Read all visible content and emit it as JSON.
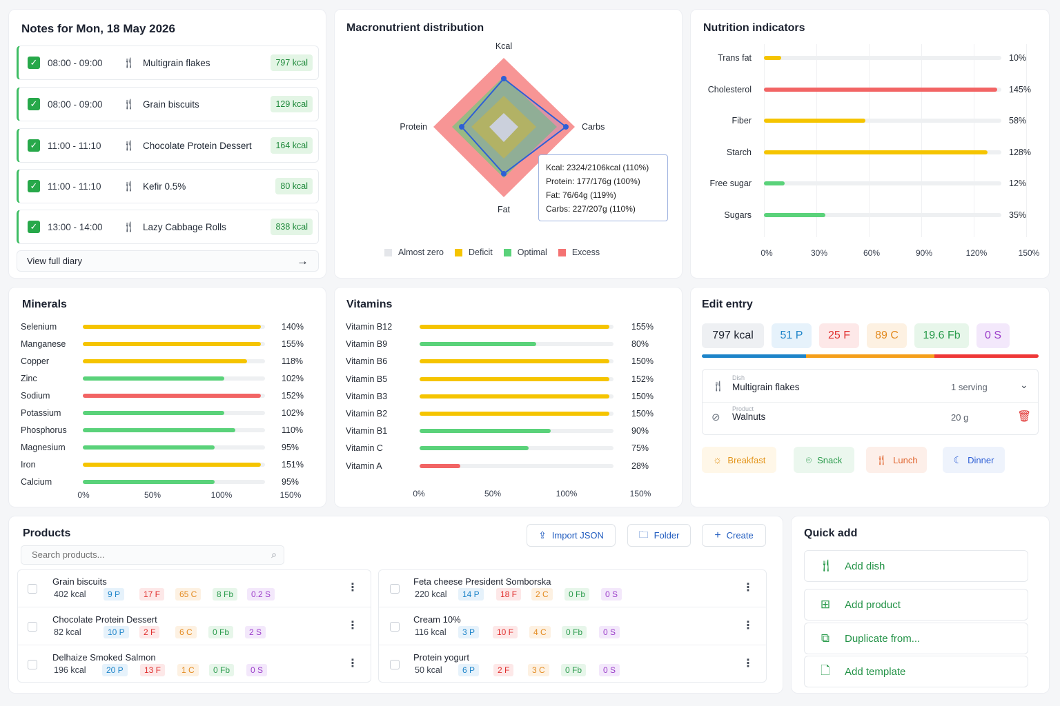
{
  "notes": {
    "title": "Notes for Mon, 18 May 2026",
    "entries": [
      {
        "time": "08:00 - 09:00",
        "name": "Multigrain flakes",
        "kcal": "797 kcal"
      },
      {
        "time": "08:00 - 09:00",
        "name": "Grain biscuits",
        "kcal": "129 kcal"
      },
      {
        "time": "11:00 - 11:10",
        "name": "Chocolate Protein Dessert",
        "kcal": "164 kcal"
      },
      {
        "time": "11:00 - 11:10",
        "name": "Kefir 0.5%",
        "kcal": "80 kcal"
      },
      {
        "time": "13:00 - 14:00",
        "name": "Lazy Cabbage Rolls",
        "kcal": "838 kcal"
      }
    ],
    "view_full": "View full diary"
  },
  "macro": {
    "title": "Macronutrient distribution",
    "axes": {
      "kcal": "Kcal",
      "carbs": "Carbs",
      "fat": "Fat",
      "protein": "Protein"
    },
    "tooltip": [
      "Kcal: 2324/2106kcal (110%)",
      "Protein: 177/176g (100%)",
      "Fat: 76/64g (119%)",
      "Carbs: 227/207g (110%)"
    ],
    "legend": [
      "Almost zero",
      "Deficit",
      "Optimal",
      "Excess"
    ]
  },
  "indicators": {
    "title": "Nutrition indicators",
    "ticks": [
      "0%",
      "30%",
      "60%",
      "90%",
      "120%",
      "150%"
    ]
  },
  "minerals": {
    "title": "Minerals",
    "ticks": [
      "0%",
      "50%",
      "100%",
      "150%"
    ]
  },
  "vitamins": {
    "title": "Vitamins",
    "ticks": [
      "0%",
      "50%",
      "100%",
      "150%"
    ]
  },
  "chart_data": [
    {
      "type": "radar",
      "title": "Macronutrient distribution",
      "axes": [
        "Kcal",
        "Carbs",
        "Fat",
        "Protein"
      ],
      "values_pct": [
        110,
        110,
        119,
        100
      ],
      "bands": [
        {
          "name": "Almost zero",
          "color": "#e4e6ea"
        },
        {
          "name": "Deficit",
          "color": "#f5c400"
        },
        {
          "name": "Optimal",
          "color": "#5ad27a"
        },
        {
          "name": "Excess",
          "color": "#f47272"
        }
      ]
    },
    {
      "type": "bar",
      "title": "Nutrition indicators",
      "categories": [
        "Trans fat",
        "Cholesterol",
        "Fiber",
        "Starch",
        "Free sugar",
        "Sugars"
      ],
      "values": [
        10,
        145,
        58,
        128,
        12,
        35
      ],
      "labels": [
        "10%",
        "145%",
        "58%",
        "128%",
        "12%",
        "35%"
      ],
      "colors": [
        "#f5c400",
        "#f26464",
        "#f5c400",
        "#f5c400",
        "#5ad27a",
        "#5ad27a"
      ],
      "xlim": [
        0,
        150
      ]
    },
    {
      "type": "bar",
      "title": "Minerals",
      "categories": [
        "Selenium",
        "Manganese",
        "Copper",
        "Zinc",
        "Sodium",
        "Potassium",
        "Phosphorus",
        "Magnesium",
        "Iron",
        "Calcium"
      ],
      "values": [
        140,
        155,
        118,
        102,
        152,
        102,
        110,
        95,
        151,
        95
      ],
      "labels": [
        "140%",
        "155%",
        "118%",
        "102%",
        "152%",
        "102%",
        "110%",
        "95%",
        "151%",
        "95%"
      ],
      "colors": [
        "#f5c400",
        "#f5c400",
        "#f5c400",
        "#5ad27a",
        "#f26464",
        "#5ad27a",
        "#5ad27a",
        "#5ad27a",
        "#f5c400",
        "#5ad27a"
      ],
      "xlim": [
        0,
        150
      ]
    },
    {
      "type": "bar",
      "title": "Vitamins",
      "categories": [
        "Vitamin B12",
        "Vitamin B9",
        "Vitamin B6",
        "Vitamin B5",
        "Vitamin B3",
        "Vitamin B2",
        "Vitamin B1",
        "Vitamin C",
        "Vitamin A"
      ],
      "values": [
        155,
        80,
        150,
        152,
        150,
        150,
        90,
        75,
        28
      ],
      "labels": [
        "155%",
        "80%",
        "150%",
        "152%",
        "150%",
        "150%",
        "90%",
        "75%",
        "28%"
      ],
      "colors": [
        "#f5c400",
        "#5ad27a",
        "#f5c400",
        "#f5c400",
        "#f5c400",
        "#f5c400",
        "#5ad27a",
        "#5ad27a",
        "#f26464"
      ],
      "xlim": [
        0,
        150
      ]
    }
  ],
  "edit": {
    "title": "Edit entry",
    "chips": [
      "797 kcal",
      "51 P",
      "25 F",
      "89 C",
      "19.6 Fb",
      "0 S"
    ],
    "macro_split": [
      0.31,
      0.38,
      0.31
    ],
    "dish_label": "Dish",
    "dish_name": "Multigrain flakes",
    "dish_amount": "1 serving",
    "product_label": "Product",
    "product_name": "Walnuts",
    "product_amount": "20 g",
    "meals": [
      "Breakfast",
      "Snack",
      "Lunch",
      "Dinner"
    ]
  },
  "products": {
    "title": "Products",
    "import": "Import JSON",
    "folder": "Folder",
    "create": "Create",
    "search_placeholder": "Search products...",
    "left": [
      {
        "name": "Grain biscuits",
        "kcal": "402 kcal",
        "p": "9 P",
        "f": "17 F",
        "c": "65 C",
        "fb": "8 Fb",
        "s": "0.2 S"
      },
      {
        "name": "Chocolate Protein Dessert",
        "kcal": "82 kcal",
        "p": "10 P",
        "f": "2 F",
        "c": "6 C",
        "fb": "0 Fb",
        "s": "2 S"
      },
      {
        "name": "Delhaize Smoked Salmon",
        "kcal": "196 kcal",
        "p": "20 P",
        "f": "13 F",
        "c": "1 C",
        "fb": "0 Fb",
        "s": "0 S"
      }
    ],
    "right": [
      {
        "name": "Feta cheese President Somborska",
        "kcal": "220 kcal",
        "p": "14 P",
        "f": "18 F",
        "c": "2 C",
        "fb": "0 Fb",
        "s": "0 S"
      },
      {
        "name": "Cream 10%",
        "kcal": "116 kcal",
        "p": "3 P",
        "f": "10 F",
        "c": "4 C",
        "fb": "0 Fb",
        "s": "0 S"
      },
      {
        "name": "Protein yogurt",
        "kcal": "50 kcal",
        "p": "6 P",
        "f": "2 F",
        "c": "3 C",
        "fb": "0 Fb",
        "s": "0 S"
      }
    ]
  },
  "quick": {
    "title": "Quick add",
    "items": [
      "Add dish",
      "Add product",
      "Duplicate from...",
      "Add template"
    ]
  }
}
